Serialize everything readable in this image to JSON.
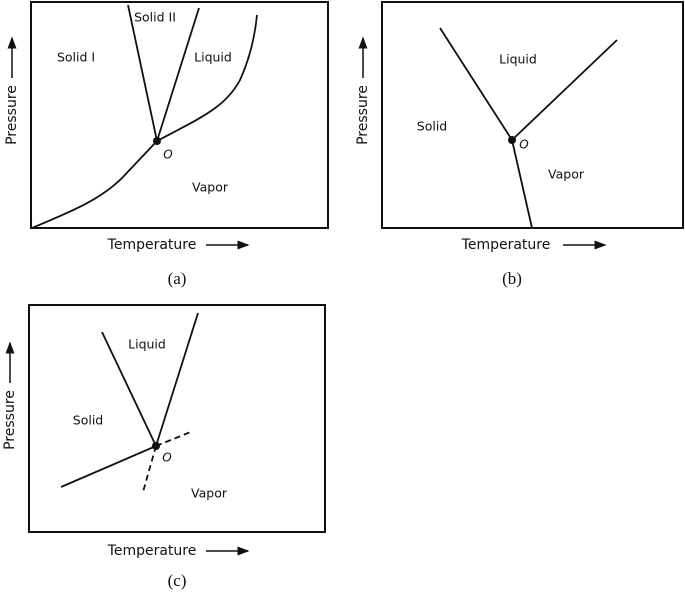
{
  "panels": [
    {
      "caption": "(a)",
      "x_label": "Temperature",
      "y_label": "Pressure",
      "regions": [
        "Solid I",
        "Solid II",
        "Liquid",
        "Vapor"
      ],
      "point": "O"
    },
    {
      "caption": "(b)",
      "x_label": "Temperature",
      "y_label": "Pressure",
      "regions": [
        "Liquid",
        "Solid",
        "Vapor"
      ],
      "point": "O"
    },
    {
      "caption": "(c)",
      "x_label": "Temperature",
      "y_label": "Pressure",
      "regions": [
        "Liquid",
        "Solid",
        "Vapor"
      ],
      "point": "O"
    }
  ]
}
